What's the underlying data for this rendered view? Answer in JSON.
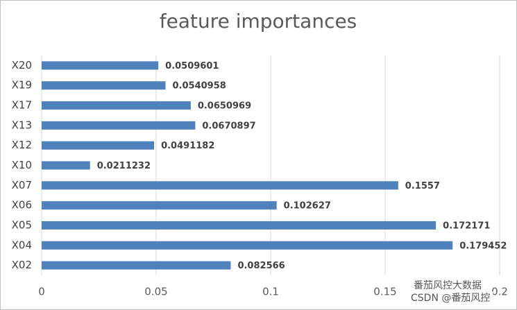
{
  "chart_data": {
    "type": "bar",
    "orientation": "horizontal",
    "title": "feature importances",
    "categories": [
      "X20",
      "X19",
      "X17",
      "X13",
      "X12",
      "X10",
      "X07",
      "X06",
      "X05",
      "X04",
      "X02"
    ],
    "values": [
      0.0509601,
      0.0540958,
      0.0650969,
      0.0670897,
      0.0491182,
      0.0211232,
      0.1557,
      0.102627,
      0.172171,
      0.179452,
      0.082566
    ],
    "color": "#4f81bd",
    "xlim": [
      0,
      0.2
    ],
    "xticks": [
      0,
      0.05,
      0.1,
      0.15,
      0.2
    ],
    "grid": true
  },
  "watermark": [
    "番茄风控大数据",
    "CSDN @番茄风控"
  ]
}
